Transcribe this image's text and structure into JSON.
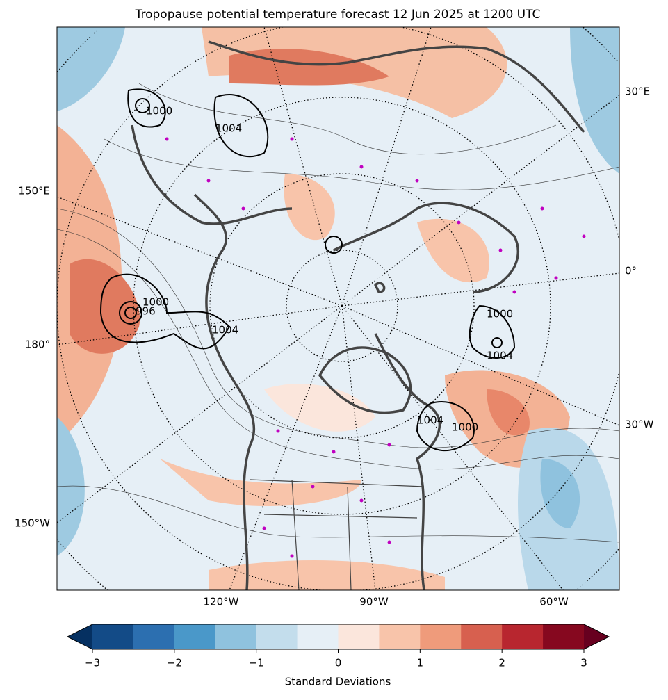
{
  "title": "Tropopause potential temperature forecast 12 Jun 2025 at 1200 UTC",
  "map": {
    "longitude_labels": [
      "30°E",
      "150°E",
      "0°",
      "180°",
      "30°W",
      "150°W",
      "120°W",
      "90°W",
      "60°W"
    ],
    "contour_labels": [
      "1004",
      "1000",
      "1000",
      "996",
      "1004",
      "1000",
      "1004",
      "1004",
      "1000"
    ]
  },
  "colorbar": {
    "label": "Standard Deviations",
    "bounds": [
      -3,
      -2.5,
      -2,
      -1.5,
      -1,
      -0.5,
      0,
      0.5,
      1,
      1.5,
      2,
      2.5,
      3
    ],
    "colors": [
      "#134b87",
      "#2c6fb0",
      "#4a98c9",
      "#8fc2de",
      "#c3ddec",
      "#e6eff6",
      "#fbe6dc",
      "#f8c4aa",
      "#ef9b7b",
      "#d7604f",
      "#b8262f",
      "#86081f"
    ],
    "extend": "both",
    "extend_colors": [
      "#053061",
      "#67001f"
    ],
    "ticks": [
      {
        "value": -3,
        "label": "−3"
      },
      {
        "value": -2,
        "label": "−2"
      },
      {
        "value": -1,
        "label": "−1"
      },
      0,
      1,
      2,
      3
    ]
  }
}
